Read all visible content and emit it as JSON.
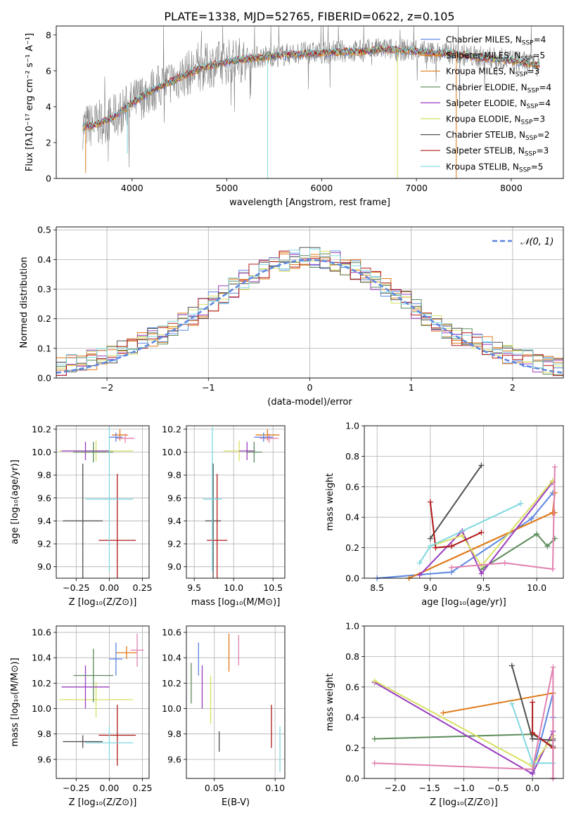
{
  "figure_title": "PLATE=1338, MJD=52765, FIBERID=0622, z=0.105",
  "colors": {
    "Chabrier MILES": "#5b86e0",
    "Salpeter MILES": "#e07a1a",
    "Kroupa MILES": "#e07a1a",
    "Chabrier ELODIE": "#5a8a5a",
    "Salpeter ELODIE": "#9a3cc0",
    "Kroupa ELODIE": "#d8e060",
    "Chabrier STELIB": "#505050",
    "Salpeter STELIB": "#b01818",
    "Kroupa STELIB": "#80d8e0",
    "Pink": "#e080b0",
    "spectrum": "#808080",
    "normal": "#5b86e0"
  },
  "chart_data": [
    {
      "type": "line",
      "id": "spectrum",
      "title": "PLATE=1338, MJD=52765, FIBERID=0622, z=0.105",
      "xlabel": "wavelength [Angstrom, rest frame]",
      "ylabel": "Flux [fλ10⁻¹⁷ erg cm⁻² s⁻¹ A⁻¹]",
      "xlim": [
        3200,
        8550
      ],
      "ylim": [
        0,
        8.5
      ],
      "xticks": [
        4000,
        5000,
        6000,
        7000,
        8000
      ],
      "yticks": [
        0,
        2,
        4,
        6,
        8
      ],
      "legend_position": "right",
      "legend": [
        {
          "label": "Chabrier MILES, N",
          "sub": "SSP",
          "suffix": "=4",
          "color": "#5b86e0"
        },
        {
          "label": "Salpeter MILES, N",
          "sub": "SSP",
          "suffix": "=5",
          "color": "#e07a1a"
        },
        {
          "label": "Kroupa MILES, N",
          "sub": "SSP",
          "suffix": "=3",
          "color": "#e07a1a"
        },
        {
          "label": "Chabrier ELODIE, N",
          "sub": "SSP",
          "suffix": "=4",
          "color": "#5a8a5a"
        },
        {
          "label": "Salpeter ELODIE, N",
          "sub": "SSP",
          "suffix": "=4",
          "color": "#9a3cc0"
        },
        {
          "label": "Kroupa ELODIE, N",
          "sub": "SSP",
          "suffix": "=3",
          "color": "#d8e060"
        },
        {
          "label": "Chabrier STELIB, N",
          "sub": "SSP",
          "suffix": "=2",
          "color": "#505050"
        },
        {
          "label": "Salpeter STELIB, N",
          "sub": "SSP",
          "suffix": "=3",
          "color": "#b01818"
        },
        {
          "label": "Kroupa STELIB, N",
          "sub": "SSP",
          "suffix": "=5",
          "color": "#80d8e0"
        }
      ],
      "continuum": {
        "x": [
          3480,
          3600,
          3800,
          4000,
          4200,
          4400,
          4600,
          4800,
          5000,
          5200,
          5400,
          5600,
          5800,
          6000,
          6200,
          6400,
          6600,
          6800,
          7000,
          7200,
          7400,
          7600,
          7800,
          8000,
          8200,
          8300
        ],
        "y": [
          2.9,
          3.0,
          3.4,
          4.2,
          4.9,
          5.4,
          5.9,
          6.3,
          6.5,
          6.7,
          6.8,
          6.9,
          7.0,
          7.0,
          7.1,
          7.1,
          7.2,
          7.2,
          7.1,
          7.0,
          7.0,
          6.8,
          6.7,
          6.6,
          6.4,
          6.3
        ]
      },
      "dropouts": [
        {
          "x": 3510,
          "to": 0.3,
          "color": "#e07a1a"
        },
        {
          "x": 3950,
          "to": 1.4,
          "color": "#80d8e0"
        },
        {
          "x": 5430,
          "to": 0.0,
          "color": "#80d8e0"
        },
        {
          "x": 6800,
          "to": 0.0,
          "color": "#d8e060"
        },
        {
          "x": 7420,
          "to": 0.0,
          "color": "#e07a1a"
        }
      ]
    },
    {
      "type": "step",
      "id": "residuals",
      "xlabel": "(data-model)/error",
      "ylabel": "Normed distribution",
      "xlim": [
        -2.5,
        2.5
      ],
      "ylim": [
        0,
        0.51
      ],
      "xticks": [
        -2,
        -1,
        0,
        1,
        2
      ],
      "yticks": [
        0.0,
        0.1,
        0.2,
        0.3,
        0.4,
        0.5
      ],
      "legend": [
        {
          "label": "𝒩(0, 1)",
          "style": "dashed",
          "color": "#5b86e0"
        }
      ],
      "legend_position": "top-right",
      "bin_width": 0.1,
      "normal": {
        "mean": 0,
        "sigma": 1
      }
    },
    {
      "type": "scatter",
      "id": "age_vs_Z",
      "xlabel": "Z [log₁₀(Z/Z⊙)]",
      "ylabel": "age  [log₁₀(age/yr)]",
      "xlim": [
        -0.4,
        0.3
      ],
      "ylim": [
        8.9,
        10.23
      ],
      "xticks": [
        -0.25,
        0.0,
        0.25
      ],
      "yticks": [
        9.0,
        9.2,
        9.4,
        9.6,
        9.8,
        10.0,
        10.2
      ],
      "points": [
        {
          "x": 0.08,
          "y": 10.15,
          "xerr": 0.06,
          "yerr": 0.05,
          "color": "#e07a1a"
        },
        {
          "x": 0.12,
          "y": 10.12,
          "xerr": 0.07,
          "yerr": 0.04,
          "color": "#e080b0"
        },
        {
          "x": 0.05,
          "y": 10.13,
          "xerr": 0.05,
          "yerr": 0.04,
          "color": "#5b86e0"
        },
        {
          "x": -0.1,
          "y": 10.01,
          "xerr": 0.28,
          "yerr": 0.09,
          "color": "#d8e060"
        },
        {
          "x": -0.18,
          "y": 10.01,
          "xerr": 0.18,
          "yerr": 0.08,
          "color": "#9a3cc0"
        },
        {
          "x": -0.12,
          "y": 10.0,
          "xerr": 0.15,
          "yerr": 0.09,
          "color": "#5a8a5a"
        },
        {
          "x": -0.2,
          "y": 9.4,
          "xerr": 0.15,
          "yerr": 0.5,
          "color": "#505050"
        },
        {
          "x": 0.06,
          "y": 9.23,
          "xerr": 0.14,
          "yerr": 0.58,
          "color": "#b01818"
        },
        {
          "x": 0.0,
          "y": 9.59,
          "xerr": 0.18,
          "yerr": 0.63,
          "color": "#80d8e0"
        }
      ]
    },
    {
      "type": "scatter",
      "id": "age_vs_mass",
      "xlabel": "mass [log₁₀(M/M⊙)]",
      "ylabel": "",
      "xlim": [
        9.4,
        10.65
      ],
      "ylim": [
        8.9,
        10.23
      ],
      "xticks": [
        9.5,
        10.0,
        10.5
      ],
      "yticks": [
        9.0,
        9.2,
        9.4,
        9.6,
        9.8,
        10.0,
        10.2
      ],
      "points": [
        {
          "x": 10.43,
          "y": 10.15,
          "xerr": 0.15,
          "yerr": 0.05,
          "color": "#e07a1a"
        },
        {
          "x": 10.45,
          "y": 10.12,
          "xerr": 0.12,
          "yerr": 0.04,
          "color": "#e080b0"
        },
        {
          "x": 10.38,
          "y": 10.13,
          "xerr": 0.12,
          "yerr": 0.04,
          "color": "#5b86e0"
        },
        {
          "x": 10.07,
          "y": 10.01,
          "xerr": 0.2,
          "yerr": 0.09,
          "color": "#d8e060"
        },
        {
          "x": 10.17,
          "y": 10.01,
          "xerr": 0.1,
          "yerr": 0.08,
          "color": "#9a3cc0"
        },
        {
          "x": 10.26,
          "y": 10.0,
          "xerr": 0.1,
          "yerr": 0.09,
          "color": "#5a8a5a"
        },
        {
          "x": 9.74,
          "y": 9.4,
          "xerr": 0.1,
          "yerr": 0.5,
          "color": "#505050"
        },
        {
          "x": 9.79,
          "y": 9.23,
          "xerr": 0.13,
          "yerr": 0.58,
          "color": "#b01818"
        },
        {
          "x": 9.73,
          "y": 9.59,
          "xerr": 0.12,
          "yerr": 0.63,
          "color": "#80d8e0"
        }
      ]
    },
    {
      "type": "line",
      "id": "mass_weight_vs_age",
      "xlabel": "age  [log₁₀(age/yr)]",
      "ylabel": "mass weight",
      "xlim": [
        8.38,
        10.25
      ],
      "ylim": [
        0.0,
        1.0
      ],
      "xticks": [
        8.5,
        9.0,
        9.5,
        10.0
      ],
      "yticks": [
        0.0,
        0.2,
        0.4,
        0.6,
        0.8,
        1.0
      ],
      "series": [
        {
          "color": "#5b86e0",
          "x": [
            8.5,
            9.2,
            9.95,
            10.15
          ],
          "y": [
            0.0,
            0.04,
            0.39,
            0.56
          ]
        },
        {
          "color": "#e07a1a",
          "x": [
            8.8,
            10.15,
            10.17
          ],
          "y": [
            0.0,
            0.43,
            0.56
          ]
        },
        {
          "color": "#e07a1a",
          "x": [
            8.8,
            10.15,
            10.17
          ],
          "y": [
            0.0,
            0.43,
            0.43
          ]
        },
        {
          "color": "#5a8a5a",
          "x": [
            9.48,
            10.0,
            10.1,
            10.17
          ],
          "y": [
            0.06,
            0.29,
            0.21,
            0.26
          ]
        },
        {
          "color": "#9a3cc0",
          "x": [
            8.9,
            9.3,
            9.48,
            10.15
          ],
          "y": [
            0.02,
            0.31,
            0.03,
            0.63
          ]
        },
        {
          "color": "#d8e060",
          "x": [
            9.0,
            9.3,
            9.48,
            10.15
          ],
          "y": [
            0.21,
            0.28,
            0.08,
            0.64
          ]
        },
        {
          "color": "#505050",
          "x": [
            9.0,
            9.48
          ],
          "y": [
            0.26,
            0.74
          ]
        },
        {
          "color": "#b01818",
          "x": [
            9.0,
            9.05,
            9.2,
            9.48
          ],
          "y": [
            0.5,
            0.2,
            0.21,
            0.3
          ]
        },
        {
          "color": "#80d8e0",
          "x": [
            8.9,
            9.0,
            9.85
          ],
          "y": [
            0.1,
            0.21,
            0.49
          ]
        },
        {
          "color": "#e080b0",
          "x": [
            9.2,
            9.7,
            10.15,
            10.17
          ],
          "y": [
            0.07,
            0.1,
            0.06,
            0.73
          ]
        }
      ]
    },
    {
      "type": "scatter",
      "id": "mass_vs_Z",
      "xlabel": "Z [log₁₀(Z/Z⊙)]",
      "ylabel": "mass [log₁₀(M/M⊙)]",
      "xlim": [
        -0.4,
        0.3
      ],
      "ylim": [
        9.45,
        10.65
      ],
      "xticks": [
        -0.25,
        0.0,
        0.25
      ],
      "yticks": [
        9.6,
        9.8,
        10.0,
        10.2,
        10.4,
        10.6
      ],
      "points": [
        {
          "x": 0.13,
          "y": 10.44,
          "xerr": 0.08,
          "yerr": 0.05,
          "color": "#e07a1a"
        },
        {
          "x": 0.21,
          "y": 10.46,
          "xerr": 0.05,
          "yerr": 0.13,
          "color": "#e080b0"
        },
        {
          "x": 0.05,
          "y": 10.39,
          "xerr": 0.05,
          "yerr": 0.13,
          "color": "#5b86e0"
        },
        {
          "x": -0.1,
          "y": 10.07,
          "xerr": 0.28,
          "yerr": 0.14,
          "color": "#d8e060"
        },
        {
          "x": -0.18,
          "y": 10.17,
          "xerr": 0.18,
          "yerr": 0.17,
          "color": "#9a3cc0"
        },
        {
          "x": -0.12,
          "y": 10.26,
          "xerr": 0.15,
          "yerr": 0.21,
          "color": "#5a8a5a"
        },
        {
          "x": -0.2,
          "y": 9.74,
          "xerr": 0.15,
          "yerr": 0.05,
          "color": "#505050"
        },
        {
          "x": 0.06,
          "y": 9.79,
          "xerr": 0.14,
          "yerr": 0.24,
          "color": "#b01818"
        },
        {
          "x": 0.0,
          "y": 9.73,
          "xerr": 0.18,
          "yerr": 0.13,
          "color": "#80d8e0"
        }
      ]
    },
    {
      "type": "scatter",
      "id": "mass_vs_EBV",
      "xlabel": "E(B-V)",
      "ylabel": "",
      "xlim": [
        0.027,
        0.108
      ],
      "ylim": [
        9.45,
        10.65
      ],
      "xticks": [
        0.05,
        0.1
      ],
      "yticks": [
        9.6,
        9.8,
        10.0,
        10.2,
        10.4,
        10.6
      ],
      "points": [
        {
          "x": 0.031,
          "y": 10.2,
          "yerr": 0.16,
          "color": "#5a8a5a"
        },
        {
          "x": 0.037,
          "y": 10.39,
          "yerr": 0.13,
          "color": "#5b86e0"
        },
        {
          "x": 0.04,
          "y": 10.17,
          "yerr": 0.17,
          "color": "#9a3cc0"
        },
        {
          "x": 0.047,
          "y": 10.07,
          "yerr": 0.19,
          "color": "#d8e060"
        },
        {
          "x": 0.054,
          "y": 9.74,
          "yerr": 0.08,
          "color": "#505050"
        },
        {
          "x": 0.062,
          "y": 10.44,
          "yerr": 0.15,
          "color": "#e07a1a"
        },
        {
          "x": 0.07,
          "y": 10.46,
          "yerr": 0.12,
          "color": "#e080b0"
        },
        {
          "x": 0.097,
          "y": 9.86,
          "yerr": 0.17,
          "color": "#b01818"
        },
        {
          "x": 0.104,
          "y": 9.68,
          "yerr": 0.18,
          "color": "#80d8e0"
        }
      ]
    },
    {
      "type": "line",
      "id": "mass_weight_vs_Z",
      "xlabel": "Z [log₁₀(Z/Z⊙)]",
      "ylabel": "mass weight",
      "xlim": [
        -2.45,
        0.45
      ],
      "ylim": [
        0.0,
        1.0
      ],
      "xticks": [
        -2.0,
        -1.5,
        -1.0,
        -0.5,
        0.0
      ],
      "yticks": [
        0.0,
        0.2,
        0.4,
        0.6,
        0.8,
        1.0
      ],
      "series": [
        {
          "color": "#5b86e0",
          "x": [
            0.0,
            0.3,
            0.3
          ],
          "y": [
            0.04,
            0.56,
            0.4
          ]
        },
        {
          "color": "#e07a1a",
          "x": [
            -1.3,
            0.3,
            0.3
          ],
          "y": [
            0.43,
            0.56,
            0.0
          ]
        },
        {
          "color": "#5a8a5a",
          "x": [
            -2.3,
            0.0,
            0.3,
            0.3
          ],
          "y": [
            0.26,
            0.29,
            0.21,
            0.26
          ]
        },
        {
          "color": "#9a3cc0",
          "x": [
            -2.3,
            0.0,
            0.3,
            0.3
          ],
          "y": [
            0.63,
            0.03,
            0.31,
            0.0
          ]
        },
        {
          "color": "#d8e060",
          "x": [
            -2.3,
            0.0,
            0.3
          ],
          "y": [
            0.64,
            0.08,
            0.28
          ]
        },
        {
          "color": "#505050",
          "x": [
            -0.3,
            0.0,
            0.3
          ],
          "y": [
            0.74,
            0.26,
            0.25
          ]
        },
        {
          "color": "#b01818",
          "x": [
            0.0,
            0.0,
            0.3
          ],
          "y": [
            0.5,
            0.3,
            0.2
          ]
        },
        {
          "color": "#80d8e0",
          "x": [
            -0.3,
            0.0,
            0.3
          ],
          "y": [
            0.49,
            0.1,
            0.1
          ]
        },
        {
          "color": "#e080b0",
          "x": [
            -2.3,
            0.0,
            0.3,
            0.3
          ],
          "y": [
            0.1,
            0.06,
            0.73,
            0.0
          ]
        }
      ]
    }
  ]
}
